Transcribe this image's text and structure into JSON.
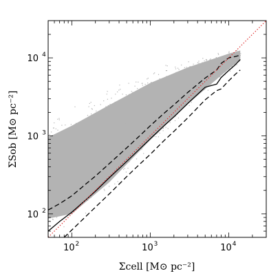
{
  "chart_data": {
    "type": "scatter",
    "title": "",
    "xlabel": "Σcell  [M⊙ pc⁻²]",
    "ylabel": "ΣSob  [M⊙ pc⁻²]",
    "xscale": "log",
    "yscale": "log",
    "xlim": [
      50,
      30000
    ],
    "ylim": [
      50,
      30000
    ],
    "grid": false,
    "legend": "none",
    "x_ticks": [
      {
        "base": "10",
        "exp": "2",
        "value": 100
      },
      {
        "base": "10",
        "exp": "3",
        "value": 1000
      },
      {
        "base": "10",
        "exp": "4",
        "value": 10000
      }
    ],
    "y_ticks": [
      {
        "base": "10",
        "exp": "2",
        "value": 100
      },
      {
        "base": "10",
        "exp": "3",
        "value": 1000
      },
      {
        "base": "10",
        "exp": "4",
        "value": 10000
      }
    ],
    "scatter_cloud": {
      "color": "#b3b3b3",
      "description_points_x": [
        50,
        100,
        300,
        1000,
        3000,
        10000,
        14000
      ],
      "upper_y": [
        2000,
        3000,
        5000,
        8000,
        10500,
        13000,
        13500
      ],
      "lower_y": [
        50,
        55,
        150,
        600,
        2000,
        6500,
        9000
      ]
    },
    "series": [
      {
        "style": "solid",
        "color": "#000000",
        "x": [
          50,
          70,
          100,
          150,
          200,
          300,
          500,
          700,
          1000,
          1500,
          2000,
          3000,
          5000,
          7000,
          8000,
          10000,
          12000,
          14000
        ],
        "y": [
          60,
          80,
          105,
          150,
          195,
          290,
          470,
          650,
          920,
          1350,
          1750,
          2600,
          4200,
          4600,
          5600,
          6900,
          8100,
          9500
        ]
      },
      {
        "style": "dashed",
        "color": "#000000",
        "x": [
          50,
          70,
          100,
          150,
          200,
          300,
          500,
          700,
          1000,
          1500,
          2000,
          3000,
          5000,
          7000,
          8000,
          10000,
          12000,
          14000
        ],
        "y": [
          112,
          135,
          170,
          240,
          305,
          440,
          700,
          960,
          1350,
          1950,
          2500,
          3600,
          5500,
          7000,
          8500,
          10000,
          10400,
          10800
        ]
      },
      {
        "style": "dashed",
        "color": "#000000",
        "x": [
          80,
          100,
          150,
          200,
          300,
          500,
          700,
          1000,
          1500,
          2000,
          3000,
          5000,
          7000,
          8000,
          10000,
          12000,
          14000
        ],
        "y": [
          50,
          62,
          92,
          122,
          180,
          300,
          415,
          580,
          870,
          1140,
          1700,
          2900,
          3800,
          4000,
          5100,
          6100,
          7000
        ]
      },
      {
        "style": "dotted",
        "color": "#e03030",
        "x": [
          50,
          30000
        ],
        "y": [
          50,
          30000
        ]
      }
    ]
  }
}
